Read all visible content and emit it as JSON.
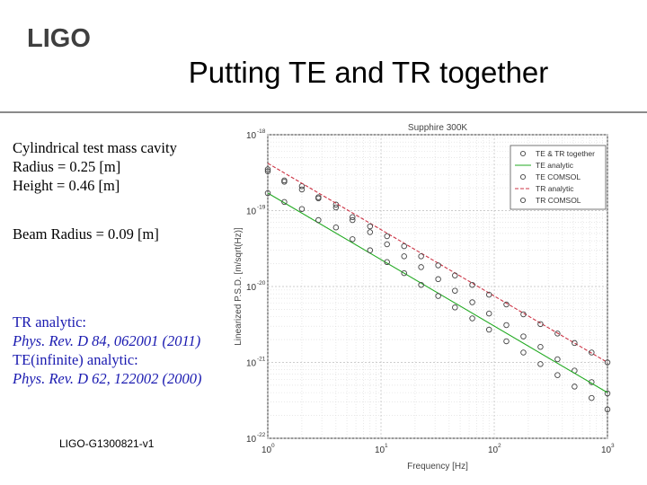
{
  "logo": {
    "text": "LIGO"
  },
  "slide": {
    "title": "Putting TE and TR together"
  },
  "info": {
    "line1": "Cylindrical test mass cavity",
    "line2": "Radius = 0.25 [m]",
    "line3": "Height = 0.46 [m]",
    "line4": "Beam Radius = 0.09 [m]"
  },
  "refs": {
    "tr_label": "TR analytic:",
    "tr_cite": "Phys. Rev. D 84, 062001 (2011)",
    "te_label": "TE(infinite) analytic:",
    "te_cite": "Phys. Rev. D 62, 122002 (2000)"
  },
  "doc_id": "LIGO-G1300821-v1",
  "colors": {
    "te_tr": "#cc3344",
    "te": "#22aa22",
    "markers": "#444444",
    "rule": "#8a8a8a",
    "ref_text": "#1a1ab0"
  },
  "chart_data": {
    "type": "line",
    "title": "Supphire 300K",
    "xlabel": "Frequency [Hz]",
    "ylabel": "Linearized P.S.D. [m/sqrt(Hz)]",
    "xscale": "log",
    "yscale": "log",
    "xlim": [
      1,
      1000
    ],
    "ylim": [
      1e-22,
      1e-18
    ],
    "x_ticks": [
      {
        "value": 1,
        "base": "10",
        "exp": "0"
      },
      {
        "value": 10,
        "base": "10",
        "exp": "1"
      },
      {
        "value": 100,
        "base": "10",
        "exp": "2"
      },
      {
        "value": 1000,
        "base": "10",
        "exp": "3"
      }
    ],
    "y_ticks": [
      {
        "value": 1e-18,
        "base": "10",
        "exp": "-18"
      },
      {
        "value": 1e-19,
        "base": "10",
        "exp": "-19"
      },
      {
        "value": 1e-20,
        "base": "10",
        "exp": "-20"
      },
      {
        "value": 1e-21,
        "base": "10",
        "exp": "-21"
      },
      {
        "value": 1e-22,
        "base": "10",
        "exp": "-22"
      }
    ],
    "legend_position": "top-right",
    "series": [
      {
        "name": "TE & TR together",
        "kind": "markers",
        "marker": "circle",
        "color": "#444444",
        "x": [
          1,
          1.4,
          2,
          2.8,
          4,
          5.6,
          8,
          11.3,
          16,
          22.6,
          32,
          45,
          64,
          90,
          128,
          181,
          256,
          362,
          512,
          724,
          1000
        ],
        "y": [
          3.5e-19,
          2.4e-19,
          2.1e-19,
          1.5e-19,
          1.2e-19,
          7.5e-20,
          5.2e-20,
          3.6e-20,
          2.5e-20,
          1.8e-20,
          1.25e-20,
          8.8e-21,
          6.2e-21,
          4.4e-21,
          3.1e-21,
          2.2e-21,
          1.6e-21,
          1.1e-21,
          7.8e-22,
          5.5e-22,
          3.9e-22
        ]
      },
      {
        "name": "TE analytic",
        "kind": "line",
        "color": "#22aa22",
        "x": [
          1,
          1000
        ],
        "y": [
          1.7e-19,
          4e-22
        ]
      },
      {
        "name": "TE COMSOL",
        "kind": "markers",
        "marker": "circle",
        "color": "#444444",
        "x": [
          1,
          1.4,
          2,
          2.8,
          4,
          5.6,
          8,
          11.3,
          16,
          22.6,
          32,
          45,
          64,
          90,
          128,
          181,
          256,
          362,
          512,
          724,
          1000
        ],
        "y": [
          1.7e-19,
          1.3e-19,
          1.05e-19,
          7.5e-20,
          6e-20,
          4.2e-20,
          3e-20,
          2.1e-20,
          1.5e-20,
          1.05e-20,
          7.5e-21,
          5.3e-21,
          3.8e-21,
          2.7e-21,
          1.9e-21,
          1.35e-21,
          9.5e-22,
          6.8e-22,
          4.8e-22,
          3.4e-22,
          2.4e-22
        ]
      },
      {
        "name": "TR analytic",
        "kind": "line",
        "dashed": true,
        "color": "#cc3344",
        "x": [
          1,
          1000
        ],
        "y": [
          4.2e-19,
          1e-21
        ]
      },
      {
        "name": "TR COMSOL",
        "kind": "markers",
        "marker": "circle",
        "color": "#444444",
        "x": [
          1,
          1.4,
          2,
          2.8,
          4,
          5.6,
          8,
          11.3,
          16,
          22.6,
          32,
          45,
          64,
          90,
          128,
          181,
          256,
          362,
          512,
          724,
          1000
        ],
        "y": [
          3.3e-19,
          2.5e-19,
          1.9e-19,
          1.45e-19,
          1.1e-19,
          8.2e-20,
          6.2e-20,
          4.6e-20,
          3.4e-20,
          2.5e-20,
          1.9e-20,
          1.4e-20,
          1.05e-20,
          7.8e-21,
          5.8e-21,
          4.3e-21,
          3.2e-21,
          2.4e-21,
          1.8e-21,
          1.35e-21,
          1e-21
        ]
      }
    ]
  }
}
